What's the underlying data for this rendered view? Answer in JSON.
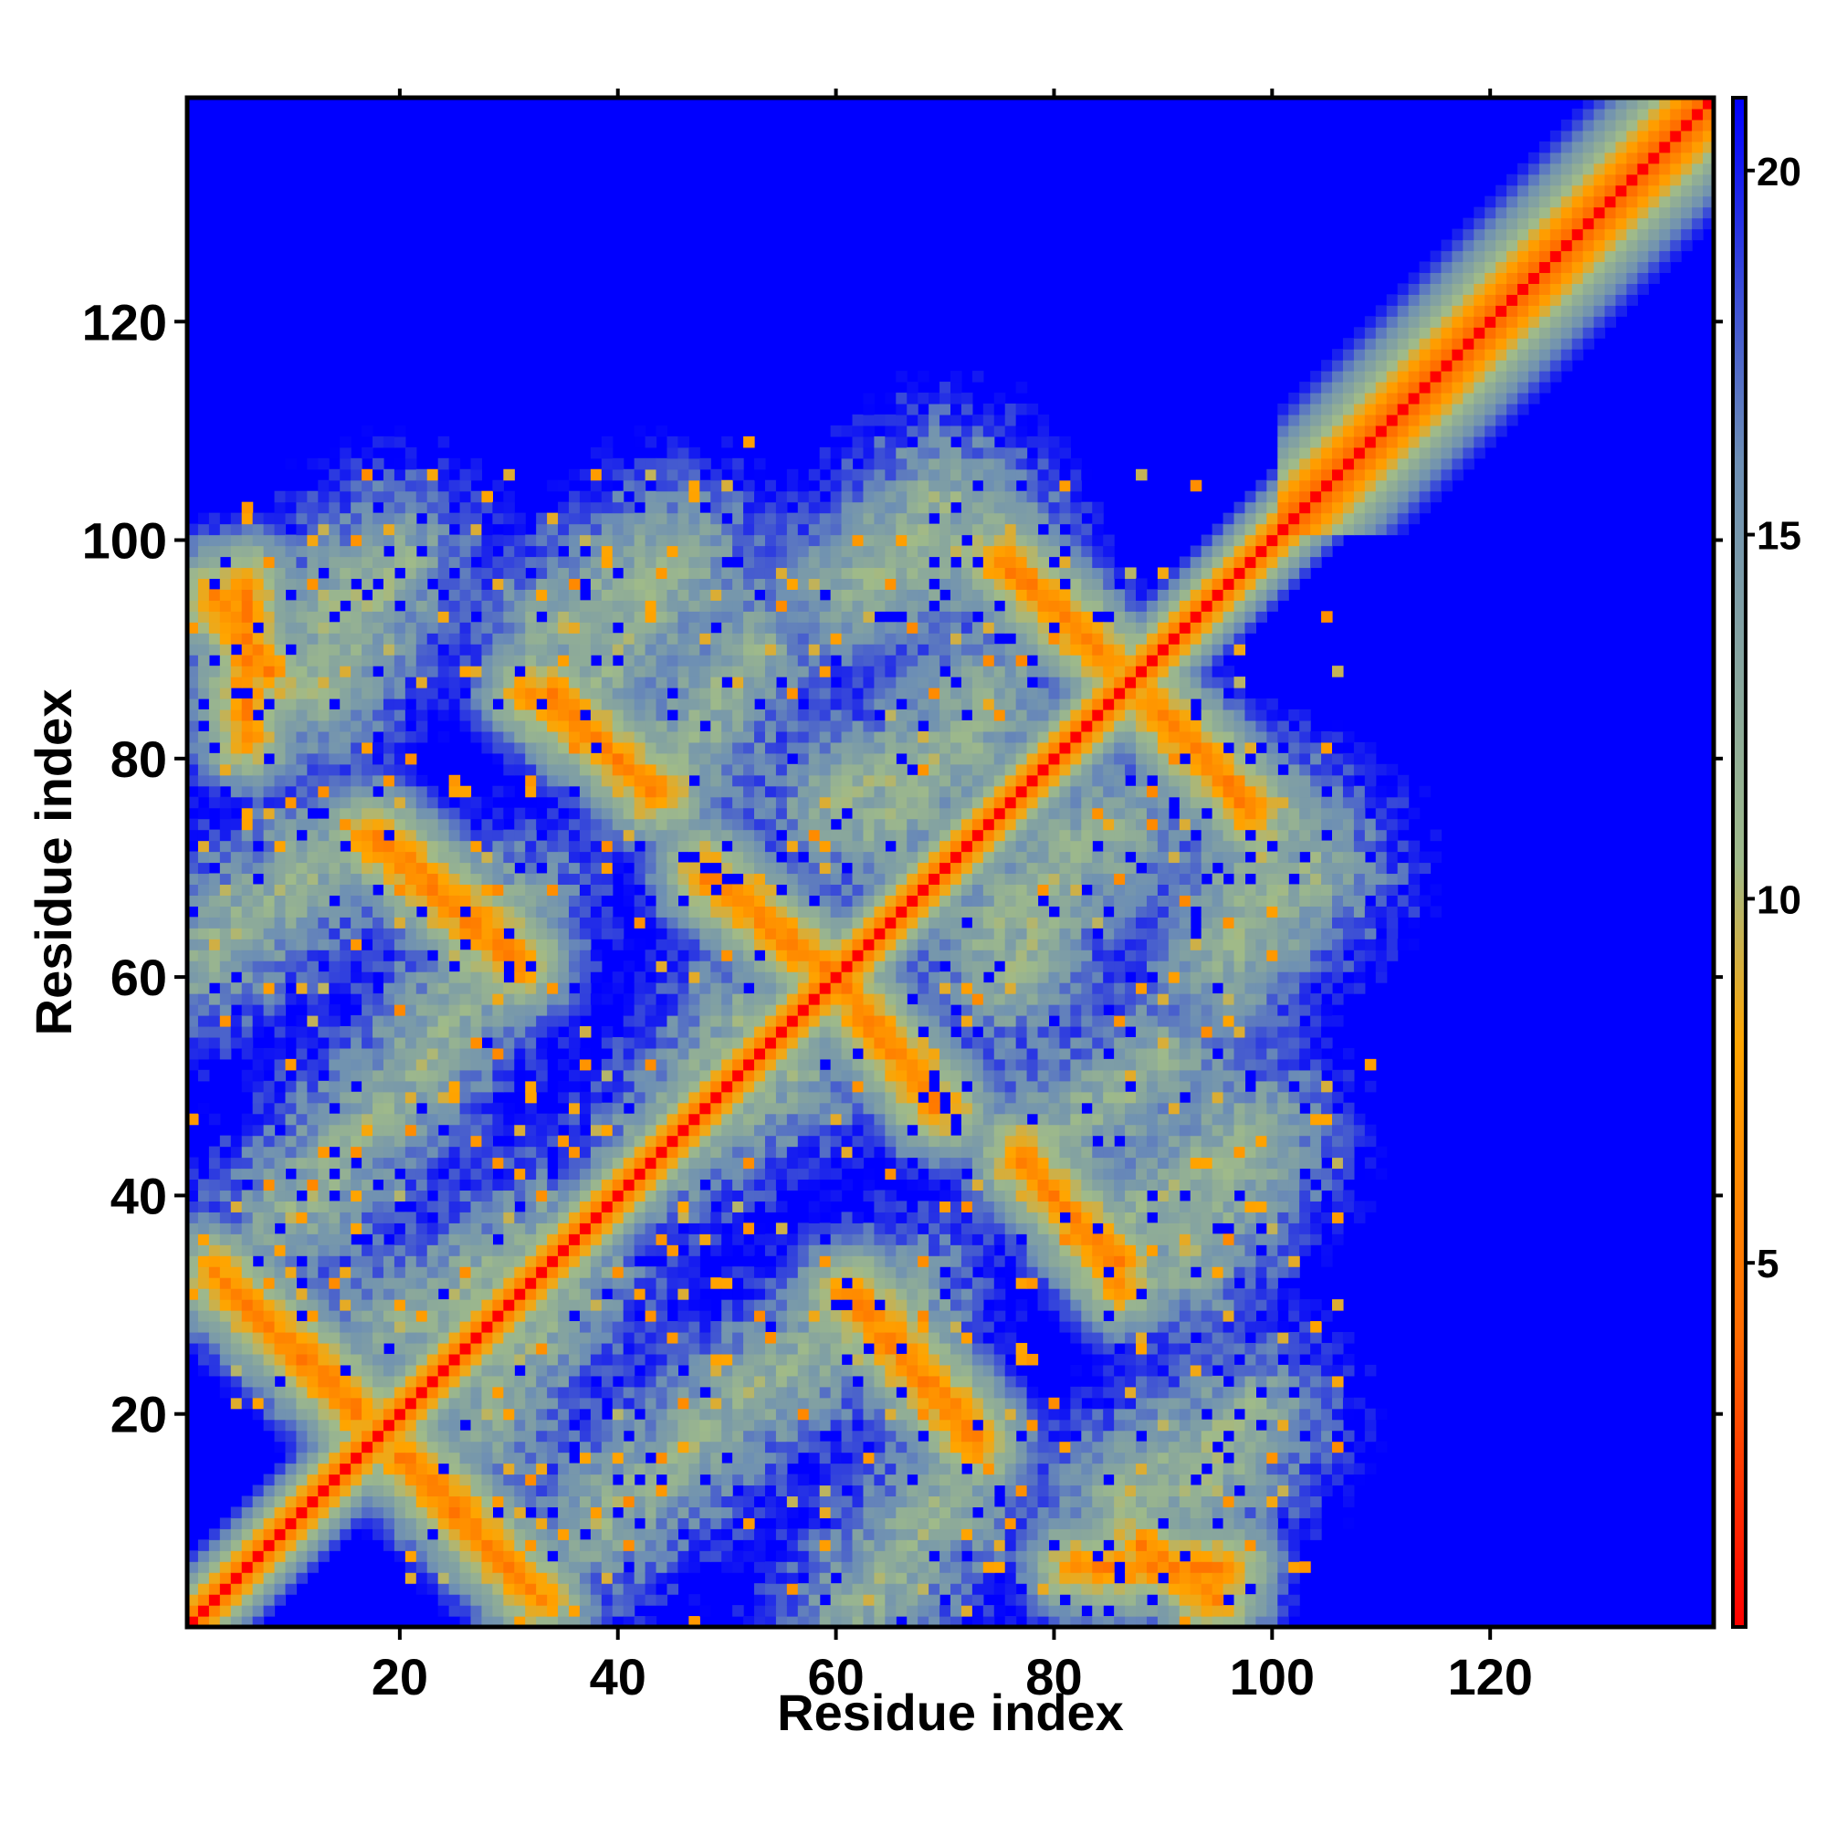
{
  "chart_data": {
    "type": "heatmap",
    "title": "",
    "xlabel": "Residue index",
    "ylabel": "Residue index",
    "xlim": [
      1,
      140
    ],
    "ylim": [
      1,
      140
    ],
    "x_ticks": [
      20,
      40,
      60,
      80,
      100,
      120
    ],
    "y_ticks": [
      20,
      40,
      60,
      80,
      100,
      120
    ],
    "x_tick_labels": [
      "20",
      "40",
      "60",
      "80",
      "100",
      "120"
    ],
    "y_tick_labels": [
      "20",
      "40",
      "60",
      "80",
      "100",
      "120"
    ],
    "colorbar": {
      "range": [
        0,
        21
      ],
      "ticks": [
        5,
        10,
        15,
        20
      ],
      "tick_labels": [
        "5",
        "10",
        "15",
        "20"
      ],
      "colors": [
        "#ff0000",
        "#ff6a00",
        "#ffa500",
        "#9fba8a",
        "#6d8fb4",
        "#0000ff"
      ],
      "color_stops": [
        0,
        4,
        8,
        10.5,
        16,
        21
      ]
    },
    "cutoff": 21,
    "grid": false,
    "legend": "colorbar-right",
    "band_width": 2.6,
    "antidiagonal_contacts": [
      {
        "start": [
          4,
          32
        ],
        "end": [
          16,
          20
        ]
      },
      {
        "start": [
          21,
          16
        ],
        "end": [
          33,
          3
        ]
      },
      {
        "start": [
          17,
          73
        ],
        "end": [
          31,
          61
        ]
      },
      {
        "start": [
          32,
          86
        ],
        "end": [
          44,
          77
        ]
      },
      {
        "start": [
          48,
          69
        ],
        "end": [
          59,
          61
        ]
      },
      {
        "start": [
          62,
          57
        ],
        "end": [
          70,
          48
        ]
      },
      {
        "start": [
          62,
          31
        ],
        "end": [
          73,
          18
        ]
      },
      {
        "start": [
          76,
          98
        ],
        "end": [
          85,
          89
        ]
      },
      {
        "start": [
          90,
          84
        ],
        "end": [
          98,
          75
        ]
      },
      {
        "start": [
          77,
          43
        ],
        "end": [
          86,
          34
        ]
      },
      {
        "start": [
          3,
          95
        ],
        "end": [
          8,
          88
        ]
      },
      {
        "start": [
          82,
          6
        ],
        "end": [
          96,
          6
        ]
      }
    ],
    "sheet_contacts": [
      {
        "start": [
          2,
          62
        ],
        "end": [
          12,
          70
        ]
      },
      {
        "start": [
          10,
          86
        ],
        "end": [
          16,
          96
        ]
      },
      {
        "start": [
          20,
          28
        ],
        "end": [
          34,
          36
        ]
      },
      {
        "start": [
          34,
          92
        ],
        "end": [
          44,
          98
        ]
      },
      {
        "start": [
          38,
          10
        ],
        "end": [
          48,
          18
        ]
      },
      {
        "start": [
          44,
          44
        ],
        "end": [
          56,
          52
        ]
      },
      {
        "start": [
          52,
          22
        ],
        "end": [
          66,
          30
        ]
      },
      {
        "start": [
          60,
          76
        ],
        "end": [
          72,
          82
        ]
      },
      {
        "start": [
          62,
          96
        ],
        "end": [
          74,
          100
        ]
      },
      {
        "start": [
          74,
          64
        ],
        "end": [
          86,
          74
        ]
      },
      {
        "start": [
          78,
          44
        ],
        "end": [
          90,
          52
        ]
      },
      {
        "start": [
          86,
          12
        ],
        "end": [
          98,
          20
        ]
      },
      {
        "start": [
          88,
          38
        ],
        "end": [
          98,
          46
        ]
      },
      {
        "start": [
          96,
          62
        ],
        "end": [
          104,
          70
        ]
      }
    ]
  }
}
